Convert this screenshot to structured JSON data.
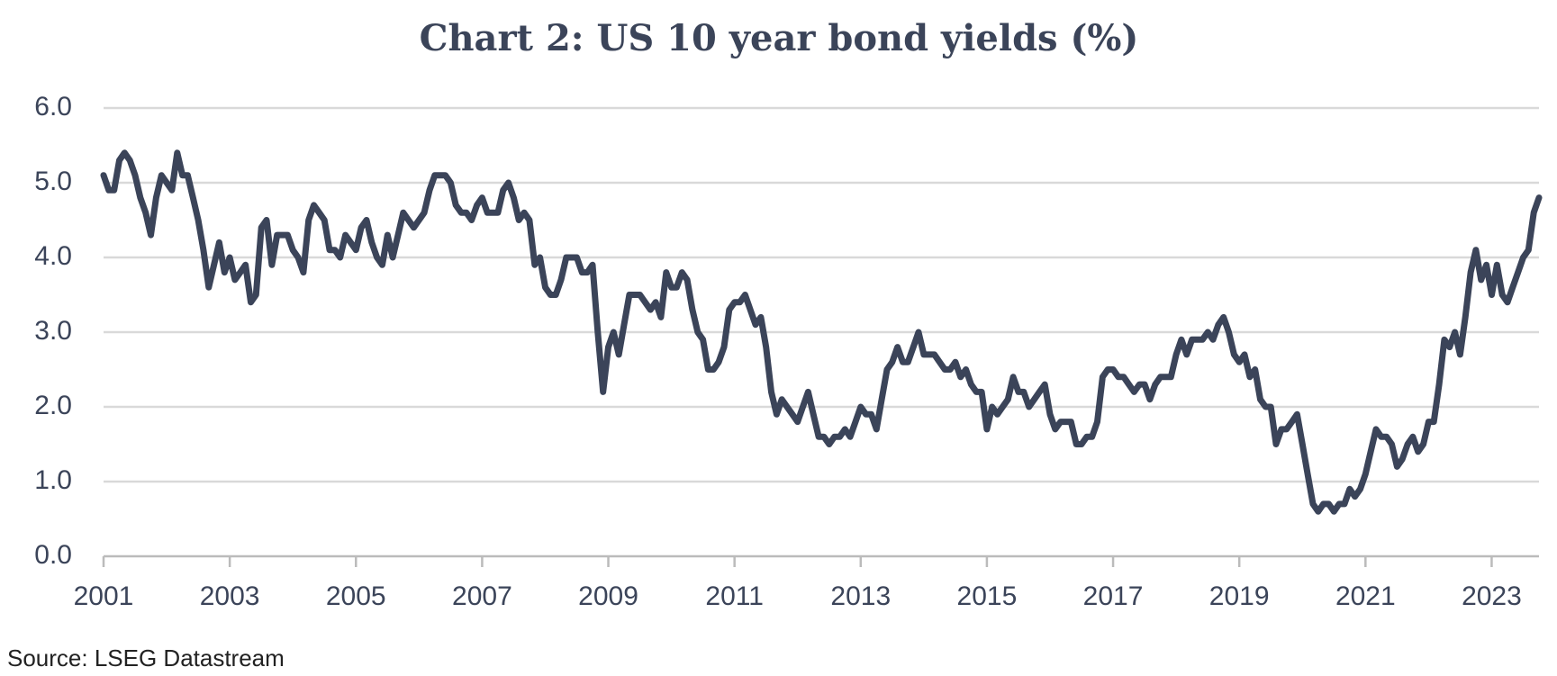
{
  "chart_data": {
    "type": "line",
    "title": "Chart 2: US 10 year bond yields (%)",
    "source": "Source: LSEG Datastream",
    "series": [
      {
        "name": "US 10 year bond yield",
        "color": "#3b4459",
        "x": [
          2001,
          2001.083,
          2001.167,
          2001.25,
          2001.333,
          2001.417,
          2001.5,
          2001.583,
          2001.667,
          2001.75,
          2001.833,
          2001.917,
          2002,
          2002.083,
          2002.167,
          2002.25,
          2002.333,
          2002.417,
          2002.5,
          2002.583,
          2002.667,
          2002.75,
          2002.833,
          2002.917,
          2003,
          2003.083,
          2003.167,
          2003.25,
          2003.333,
          2003.417,
          2003.5,
          2003.583,
          2003.667,
          2003.75,
          2003.833,
          2003.917,
          2004,
          2004.083,
          2004.167,
          2004.25,
          2004.333,
          2004.417,
          2004.5,
          2004.583,
          2004.667,
          2004.75,
          2004.833,
          2004.917,
          2005,
          2005.083,
          2005.167,
          2005.25,
          2005.333,
          2005.417,
          2005.5,
          2005.583,
          2005.667,
          2005.75,
          2005.833,
          2005.917,
          2006,
          2006.083,
          2006.167,
          2006.25,
          2006.333,
          2006.417,
          2006.5,
          2006.583,
          2006.667,
          2006.75,
          2006.833,
          2006.917,
          2007,
          2007.083,
          2007.167,
          2007.25,
          2007.333,
          2007.417,
          2007.5,
          2007.583,
          2007.667,
          2007.75,
          2007.833,
          2007.917,
          2008,
          2008.083,
          2008.167,
          2008.25,
          2008.333,
          2008.417,
          2008.5,
          2008.583,
          2008.667,
          2008.75,
          2008.833,
          2008.917,
          2009,
          2009.083,
          2009.167,
          2009.25,
          2009.333,
          2009.417,
          2009.5,
          2009.583,
          2009.667,
          2009.75,
          2009.833,
          2009.917,
          2010,
          2010.083,
          2010.167,
          2010.25,
          2010.333,
          2010.417,
          2010.5,
          2010.583,
          2010.667,
          2010.75,
          2010.833,
          2010.917,
          2011,
          2011.083,
          2011.167,
          2011.25,
          2011.333,
          2011.417,
          2011.5,
          2011.583,
          2011.667,
          2011.75,
          2011.833,
          2011.917,
          2012,
          2012.083,
          2012.167,
          2012.25,
          2012.333,
          2012.417,
          2012.5,
          2012.583,
          2012.667,
          2012.75,
          2012.833,
          2012.917,
          2013,
          2013.083,
          2013.167,
          2013.25,
          2013.333,
          2013.417,
          2013.5,
          2013.583,
          2013.667,
          2013.75,
          2013.833,
          2013.917,
          2014,
          2014.083,
          2014.167,
          2014.25,
          2014.333,
          2014.417,
          2014.5,
          2014.583,
          2014.667,
          2014.75,
          2014.833,
          2014.917,
          2015,
          2015.083,
          2015.167,
          2015.25,
          2015.333,
          2015.417,
          2015.5,
          2015.583,
          2015.667,
          2015.75,
          2015.833,
          2015.917,
          2016,
          2016.083,
          2016.167,
          2016.25,
          2016.333,
          2016.417,
          2016.5,
          2016.583,
          2016.667,
          2016.75,
          2016.833,
          2016.917,
          2017,
          2017.083,
          2017.167,
          2017.25,
          2017.333,
          2017.417,
          2017.5,
          2017.583,
          2017.667,
          2017.75,
          2017.833,
          2017.917,
          2018,
          2018.083,
          2018.167,
          2018.25,
          2018.333,
          2018.417,
          2018.5,
          2018.583,
          2018.667,
          2018.75,
          2018.833,
          2018.917,
          2019,
          2019.083,
          2019.167,
          2019.25,
          2019.333,
          2019.417,
          2019.5,
          2019.583,
          2019.667,
          2019.75,
          2019.833,
          2019.917,
          2020,
          2020.083,
          2020.167,
          2020.25,
          2020.333,
          2020.417,
          2020.5,
          2020.583,
          2020.667,
          2020.75,
          2020.833,
          2020.917,
          2021,
          2021.083,
          2021.167,
          2021.25,
          2021.333,
          2021.417,
          2021.5,
          2021.583,
          2021.667,
          2021.75,
          2021.833,
          2021.917,
          2022,
          2022.083,
          2022.167,
          2022.25,
          2022.333,
          2022.417,
          2022.5,
          2022.583,
          2022.667,
          2022.75,
          2022.833,
          2022.917,
          2023,
          2023.083,
          2023.167,
          2023.25,
          2023.333,
          2023.417,
          2023.5,
          2023.583,
          2023.667,
          2023.75
        ],
        "values": [
          5.1,
          4.9,
          4.9,
          5.3,
          5.4,
          5.3,
          5.1,
          4.8,
          4.6,
          4.3,
          4.8,
          5.1,
          5.0,
          4.9,
          5.4,
          5.1,
          5.1,
          4.8,
          4.5,
          4.1,
          3.6,
          3.9,
          4.2,
          3.8,
          4.0,
          3.7,
          3.8,
          3.9,
          3.4,
          3.5,
          4.4,
          4.5,
          3.9,
          4.3,
          4.3,
          4.3,
          4.1,
          4.0,
          3.8,
          4.5,
          4.7,
          4.6,
          4.5,
          4.1,
          4.1,
          4.0,
          4.3,
          4.2,
          4.1,
          4.4,
          4.5,
          4.2,
          4.0,
          3.9,
          4.3,
          4.0,
          4.3,
          4.6,
          4.5,
          4.4,
          4.5,
          4.6,
          4.9,
          5.1,
          5.1,
          5.1,
          5.0,
          4.7,
          4.6,
          4.6,
          4.5,
          4.7,
          4.8,
          4.6,
          4.6,
          4.6,
          4.9,
          5.0,
          4.8,
          4.5,
          4.6,
          4.5,
          3.9,
          4.0,
          3.6,
          3.5,
          3.5,
          3.7,
          4.0,
          4.0,
          4.0,
          3.8,
          3.8,
          3.9,
          3.0,
          2.2,
          2.8,
          3.0,
          2.7,
          3.1,
          3.5,
          3.5,
          3.5,
          3.4,
          3.3,
          3.4,
          3.2,
          3.8,
          3.6,
          3.6,
          3.8,
          3.7,
          3.3,
          3.0,
          2.9,
          2.5,
          2.5,
          2.6,
          2.8,
          3.3,
          3.4,
          3.4,
          3.5,
          3.3,
          3.1,
          3.2,
          2.8,
          2.2,
          1.9,
          2.1,
          2.0,
          1.9,
          1.8,
          2.0,
          2.2,
          1.9,
          1.6,
          1.6,
          1.5,
          1.6,
          1.6,
          1.7,
          1.6,
          1.8,
          2.0,
          1.9,
          1.9,
          1.7,
          2.1,
          2.5,
          2.6,
          2.8,
          2.6,
          2.6,
          2.8,
          3.0,
          2.7,
          2.7,
          2.7,
          2.6,
          2.5,
          2.5,
          2.6,
          2.4,
          2.5,
          2.3,
          2.2,
          2.2,
          1.7,
          2.0,
          1.9,
          2.0,
          2.1,
          2.4,
          2.2,
          2.2,
          2.0,
          2.1,
          2.2,
          2.3,
          1.9,
          1.7,
          1.8,
          1.8,
          1.8,
          1.5,
          1.5,
          1.6,
          1.6,
          1.8,
          2.4,
          2.5,
          2.5,
          2.4,
          2.4,
          2.3,
          2.2,
          2.3,
          2.3,
          2.1,
          2.3,
          2.4,
          2.4,
          2.4,
          2.7,
          2.9,
          2.7,
          2.9,
          2.9,
          2.9,
          3.0,
          2.9,
          3.1,
          3.2,
          3.0,
          2.7,
          2.6,
          2.7,
          2.4,
          2.5,
          2.1,
          2.0,
          2.0,
          1.5,
          1.7,
          1.7,
          1.8,
          1.9,
          1.5,
          1.1,
          0.7,
          0.6,
          0.7,
          0.7,
          0.6,
          0.7,
          0.7,
          0.9,
          0.8,
          0.9,
          1.1,
          1.4,
          1.7,
          1.6,
          1.6,
          1.5,
          1.2,
          1.3,
          1.5,
          1.6,
          1.4,
          1.5,
          1.8,
          1.8,
          2.3,
          2.9,
          2.8,
          3.0,
          2.7,
          3.2,
          3.8,
          4.1,
          3.7,
          3.9,
          3.5,
          3.9,
          3.5,
          3.4,
          3.6,
          3.8,
          4.0,
          4.1,
          4.6,
          4.8
        ]
      }
    ],
    "xlim": [
      2001,
      2023.75
    ],
    "xticks": [
      2001,
      2003,
      2005,
      2007,
      2009,
      2011,
      2013,
      2015,
      2017,
      2019,
      2021,
      2023
    ],
    "ylim": [
      0,
      6
    ],
    "yticks": [
      {
        "value": 0,
        "label": "0.0"
      },
      {
        "value": 1,
        "label": "1.0"
      },
      {
        "value": 2,
        "label": "2.0"
      },
      {
        "value": 3,
        "label": "3.0"
      },
      {
        "value": 4,
        "label": "4.0"
      },
      {
        "value": 5,
        "label": "5.0"
      },
      {
        "value": 6,
        "label": "6.0"
      }
    ],
    "grid": true
  }
}
